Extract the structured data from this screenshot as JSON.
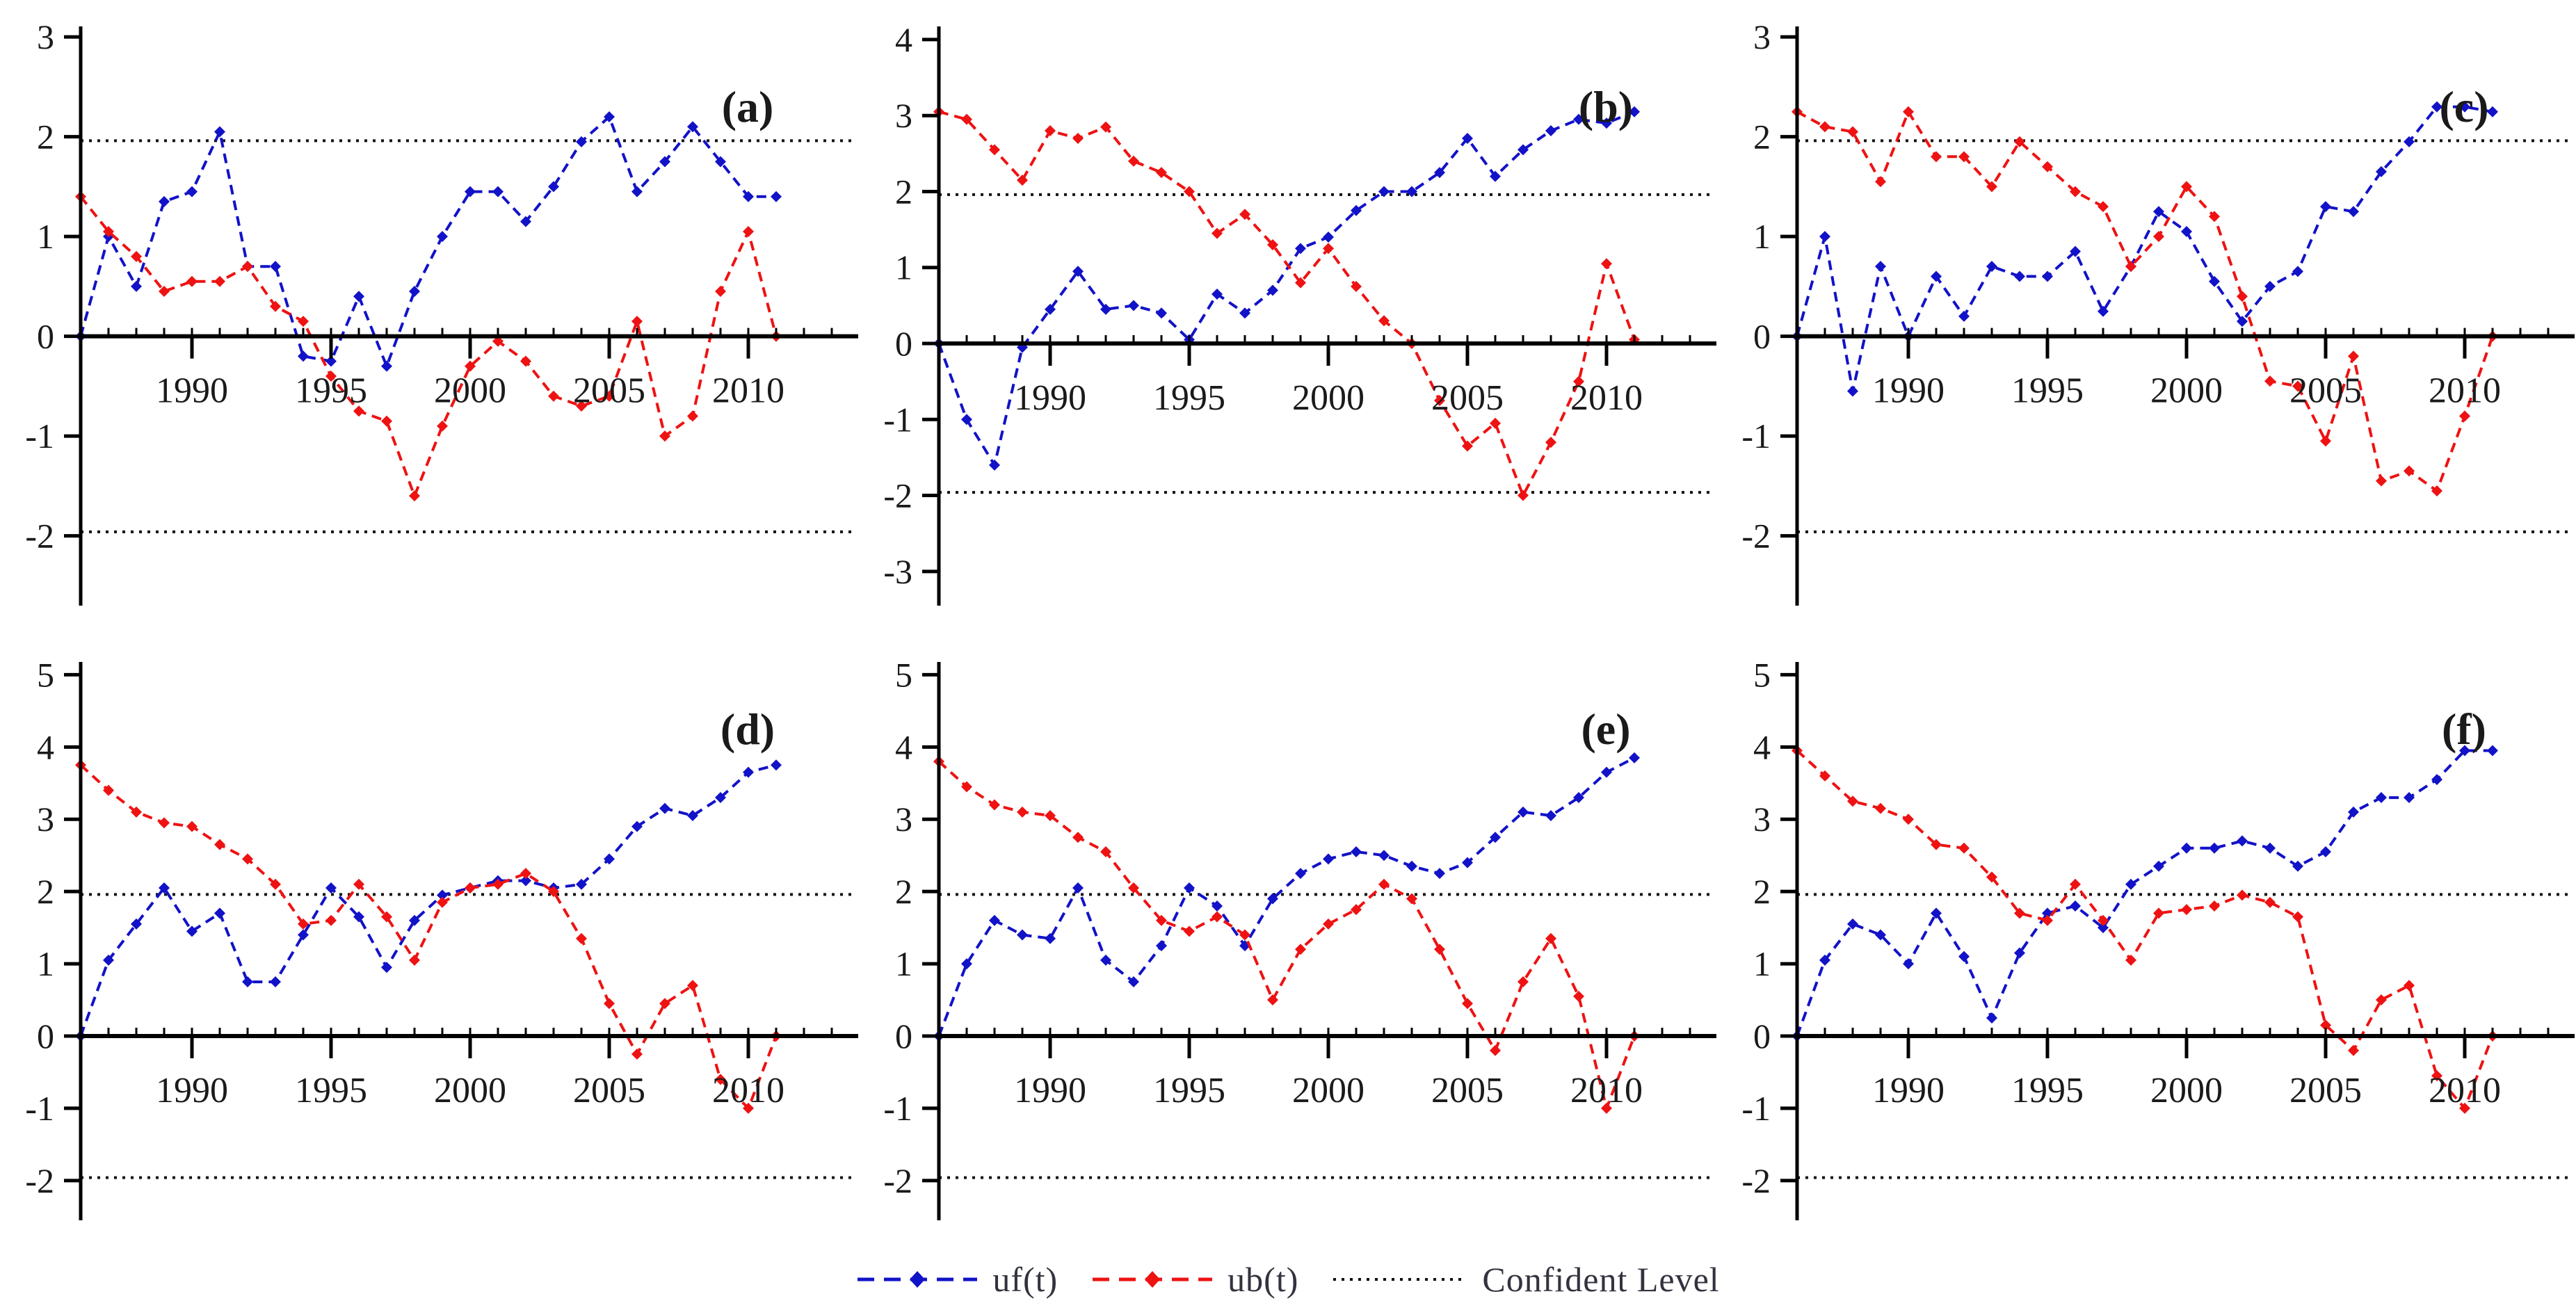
{
  "figure": {
    "background": "#ffffff",
    "rows": 2,
    "cols": 3
  },
  "colors": {
    "uf": "#1212c8",
    "ub": "#ee1212",
    "confidence": "#111111",
    "axis": "#000000",
    "text": "#1a1a1a"
  },
  "legend": {
    "items": [
      {
        "id": "uf",
        "label": "uf(t)",
        "color": "#1212c8",
        "style": "dashed-diamond"
      },
      {
        "id": "ub",
        "label": "ub(t)",
        "color": "#ee1212",
        "style": "dashed-diamond"
      },
      {
        "id": "confidence",
        "label": "Confident Level",
        "color": "#111111",
        "style": "dotted"
      }
    ]
  },
  "chart_data": {
    "common": {
      "type": "line",
      "years": [
        1986,
        1987,
        1988,
        1989,
        1990,
        1991,
        1992,
        1993,
        1994,
        1995,
        1996,
        1997,
        1998,
        1999,
        2000,
        2001,
        2002,
        2003,
        2004,
        2005,
        2006,
        2007,
        2008,
        2009,
        2010,
        2011
      ],
      "x_major_ticks": [
        1990,
        1995,
        2000,
        2005,
        2010
      ],
      "x_axis_end_year": 2013,
      "confidence_level": 1.96,
      "legend_series": [
        "uf(t)",
        "ub(t)",
        "Confident Level"
      ],
      "grid": "off"
    },
    "panels": [
      {
        "id": "a",
        "label": "(a)",
        "ylim": [
          -2.7,
          3.05
        ],
        "yticks": [
          3,
          2,
          1,
          0,
          -1,
          -2
        ],
        "series": [
          {
            "name": "uf(t)",
            "values": [
              0,
              1.0,
              0.5,
              1.35,
              1.45,
              2.05,
              0.7,
              0.7,
              -0.2,
              -0.25,
              0.4,
              -0.3,
              0.45,
              1.0,
              1.45,
              1.45,
              1.15,
              1.5,
              1.95,
              2.2,
              1.45,
              1.75,
              2.1,
              1.75,
              1.4,
              1.4
            ]
          },
          {
            "name": "ub(t)",
            "values": [
              1.4,
              1.05,
              0.8,
              0.45,
              0.55,
              0.55,
              0.7,
              0.3,
              0.15,
              -0.4,
              -0.75,
              -0.85,
              -1.6,
              -0.9,
              -0.3,
              -0.05,
              -0.25,
              -0.6,
              -0.7,
              -0.6,
              0.15,
              -1.0,
              -0.8,
              0.45,
              1.05,
              0.0
            ]
          }
        ]
      },
      {
        "id": "b",
        "label": "(b)",
        "ylim": [
          -3.45,
          4.1
        ],
        "yticks": [
          4,
          3,
          2,
          1,
          0,
          -1,
          -2,
          -3
        ],
        "series": [
          {
            "name": "uf(t)",
            "values": [
              0,
              -1.0,
              -1.6,
              -0.05,
              0.45,
              0.95,
              0.45,
              0.5,
              0.4,
              0.05,
              0.65,
              0.4,
              0.7,
              1.25,
              1.4,
              1.75,
              2.0,
              2.0,
              2.25,
              2.7,
              2.2,
              2.55,
              2.8,
              2.95,
              2.9,
              3.05
            ]
          },
          {
            "name": "ub(t)",
            "values": [
              3.05,
              2.95,
              2.55,
              2.15,
              2.8,
              2.7,
              2.85,
              2.4,
              2.25,
              2.0,
              1.45,
              1.7,
              1.3,
              0.8,
              1.25,
              0.75,
              0.3,
              0.0,
              -0.75,
              -1.35,
              -1.05,
              -2.0,
              -1.3,
              -0.5,
              1.05,
              0.05
            ]
          }
        ]
      },
      {
        "id": "c",
        "label": "(c)",
        "ylim": [
          -2.7,
          3.05
        ],
        "yticks": [
          3,
          2,
          1,
          0,
          -1,
          -2
        ],
        "series": [
          {
            "name": "uf(t)",
            "values": [
              0,
              1.0,
              -0.55,
              0.7,
              0.0,
              0.6,
              0.2,
              0.7,
              0.6,
              0.6,
              0.85,
              0.25,
              0.7,
              1.25,
              1.05,
              0.55,
              0.15,
              0.5,
              0.65,
              1.3,
              1.25,
              1.65,
              1.95,
              2.3,
              2.3,
              2.25
            ]
          },
          {
            "name": "ub(t)",
            "values": [
              2.25,
              2.1,
              2.05,
              1.55,
              2.25,
              1.8,
              1.8,
              1.5,
              1.95,
              1.7,
              1.45,
              1.3,
              0.7,
              1.0,
              1.5,
              1.2,
              0.4,
              -0.45,
              -0.5,
              -1.05,
              -0.2,
              -1.45,
              -1.35,
              -1.55,
              -0.8,
              0.0
            ]
          }
        ]
      },
      {
        "id": "d",
        "label": "(d)",
        "ylim": [
          -2.55,
          5.1
        ],
        "yticks": [
          5,
          4,
          3,
          2,
          1,
          0,
          -1,
          -2
        ],
        "series": [
          {
            "name": "uf(t)",
            "values": [
              0,
              1.05,
              1.55,
              2.05,
              1.45,
              1.7,
              0.75,
              0.75,
              1.4,
              2.05,
              1.65,
              0.95,
              1.6,
              1.95,
              2.05,
              2.15,
              2.15,
              2.05,
              2.1,
              2.45,
              2.9,
              3.15,
              3.05,
              3.3,
              3.65,
              3.75
            ]
          },
          {
            "name": "ub(t)",
            "values": [
              3.75,
              3.4,
              3.1,
              2.95,
              2.9,
              2.65,
              2.45,
              2.1,
              1.55,
              1.6,
              2.1,
              1.65,
              1.05,
              1.85,
              2.05,
              2.1,
              2.25,
              2.0,
              1.35,
              0.45,
              -0.25,
              0.45,
              0.7,
              -0.6,
              -1.0,
              0.0
            ]
          }
        ]
      },
      {
        "id": "e",
        "label": "(e)",
        "ylim": [
          -2.55,
          5.1
        ],
        "yticks": [
          5,
          4,
          3,
          2,
          1,
          0,
          -1,
          -2
        ],
        "series": [
          {
            "name": "uf(t)",
            "values": [
              0,
              1.0,
              1.6,
              1.4,
              1.35,
              2.05,
              1.05,
              0.75,
              1.25,
              2.05,
              1.8,
              1.25,
              1.9,
              2.25,
              2.45,
              2.55,
              2.5,
              2.35,
              2.25,
              2.4,
              2.75,
              3.1,
              3.05,
              3.3,
              3.65,
              3.85
            ]
          },
          {
            "name": "ub(t)",
            "values": [
              3.8,
              3.45,
              3.2,
              3.1,
              3.05,
              2.75,
              2.55,
              2.05,
              1.6,
              1.45,
              1.65,
              1.4,
              0.5,
              1.2,
              1.55,
              1.75,
              2.1,
              1.9,
              1.2,
              0.45,
              -0.2,
              0.75,
              1.35,
              0.55,
              -1.0,
              0.0
            ]
          }
        ]
      },
      {
        "id": "f",
        "label": "(f)",
        "ylim": [
          -2.55,
          5.1
        ],
        "yticks": [
          5,
          4,
          3,
          2,
          1,
          0,
          -1,
          -2
        ],
        "series": [
          {
            "name": "uf(t)",
            "values": [
              0,
              1.05,
              1.55,
              1.4,
              1.0,
              1.7,
              1.1,
              0.25,
              1.15,
              1.7,
              1.8,
              1.5,
              2.1,
              2.35,
              2.6,
              2.6,
              2.7,
              2.6,
              2.35,
              2.55,
              3.1,
              3.3,
              3.3,
              3.55,
              3.95,
              3.95
            ]
          },
          {
            "name": "ub(t)",
            "values": [
              3.95,
              3.6,
              3.25,
              3.15,
              3.0,
              2.65,
              2.6,
              2.2,
              1.7,
              1.6,
              2.1,
              1.6,
              1.05,
              1.7,
              1.75,
              1.8,
              1.95,
              1.85,
              1.65,
              0.15,
              -0.2,
              0.5,
              0.7,
              -0.55,
              -1.0,
              0.0
            ]
          }
        ]
      }
    ]
  }
}
